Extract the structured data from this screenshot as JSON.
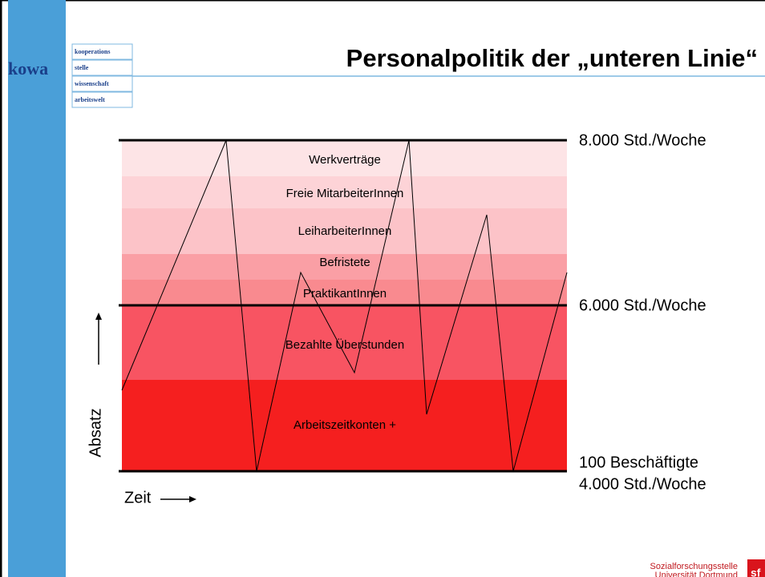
{
  "header": {
    "title": "Personalpolitik der „unteren Linie“",
    "logo": {
      "word": "kowa",
      "lines": [
        "kooperations",
        "stelle",
        "wissenschaft",
        "arbeitswelt"
      ]
    }
  },
  "diagram": {
    "bands": [
      "Werkverträge",
      "Freie MitarbeiterInnen",
      "LeiharbeiterInnen",
      "Befristete",
      "PraktikantInnen",
      "Bezahlte Überstunden",
      "Arbeitszeitkonten +"
    ],
    "levels": [
      "8.000 Std./Woche",
      "6.000 Std./Woche",
      "100 Beschäftigte",
      "4.000 Std./Woche"
    ],
    "y_axis": "Absatz",
    "x_axis": "Zeit"
  },
  "footer": {
    "lines": [
      "Sozialforschungsstelle",
      "Universität Dortmund"
    ],
    "mark": "sf"
  }
}
